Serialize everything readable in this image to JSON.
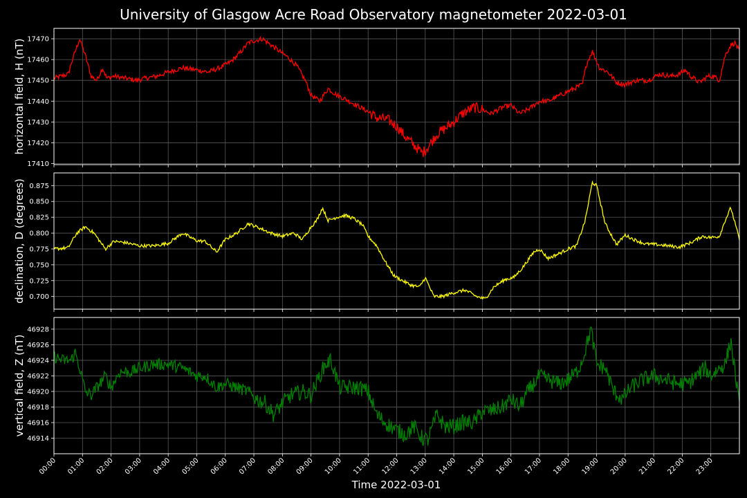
{
  "chart_data": {
    "title": "University of Glasgow Acre Road Observatory magnetometer 2022-03-01",
    "xlabel": "Time 2022-03-01",
    "x_ticks": [
      "00:00",
      "01:00",
      "02:00",
      "03:00",
      "04:00",
      "05:00",
      "06:00",
      "07:00",
      "08:00",
      "09:00",
      "10:00",
      "11:00",
      "12:00",
      "13:00",
      "14:00",
      "15:00",
      "16:00",
      "17:00",
      "18:00",
      "19:00",
      "20:00",
      "21:00",
      "22:00",
      "23:00"
    ],
    "xlim": [
      0,
      24
    ],
    "grid": true,
    "background": "#000000",
    "panels": [
      {
        "type": "line",
        "ylabel": "horizontal field, H (nT)",
        "color": "#ff0000",
        "ylim": [
          17409.5,
          17475
        ],
        "yticks": [
          17410,
          17420,
          17430,
          17440,
          17450,
          17460,
          17470
        ],
        "ytick_labels": [
          "17410",
          "17420",
          "17430",
          "17440",
          "17450",
          "17460",
          "17470"
        ],
        "x": [
          0,
          0.25,
          0.5,
          0.65,
          0.9,
          1.1,
          1.3,
          1.5,
          1.7,
          1.85,
          2.1,
          2.5,
          2.9,
          3.2,
          3.6,
          4.0,
          4.5,
          5.0,
          5.4,
          5.8,
          6.2,
          6.5,
          6.8,
          7.0,
          7.3,
          7.6,
          7.9,
          8.2,
          8.5,
          8.8,
          9.0,
          9.3,
          9.6,
          9.9,
          10.2,
          10.6,
          11.0,
          11.3,
          11.7,
          12.0,
          12.3,
          12.6,
          12.9,
          13.1,
          13.4,
          13.7,
          14.0,
          14.3,
          14.7,
          15.0,
          15.3,
          15.7,
          16.0,
          16.3,
          16.6,
          17.0,
          17.3,
          17.6,
          17.9,
          18.2,
          18.5,
          18.65,
          18.85,
          19.1,
          19.4,
          19.7,
          20.0,
          20.4,
          20.8,
          21.2,
          21.6,
          21.9,
          22.1,
          22.3,
          22.6,
          22.9,
          23.1,
          23.3,
          23.5,
          23.7,
          23.85,
          24.0
        ],
        "values": [
          17451,
          17452,
          17453,
          17460,
          17470,
          17462,
          17452,
          17450,
          17456,
          17451,
          17452,
          17451,
          17450,
          17451,
          17452,
          17454,
          17456,
          17455,
          17454,
          17456,
          17459,
          17463,
          17468,
          17469,
          17470,
          17467,
          17464,
          17461,
          17457,
          17450,
          17443,
          17440,
          17446,
          17443,
          17441,
          17438,
          17435,
          17432,
          17431,
          17428,
          17423,
          17419,
          17415,
          17418,
          17424,
          17427,
          17430,
          17434,
          17437,
          17436,
          17434,
          17437,
          17438,
          17434,
          17436,
          17440,
          17440,
          17442,
          17444,
          17446,
          17448,
          17458,
          17464,
          17456,
          17454,
          17449,
          17448,
          17450,
          17450,
          17453,
          17452,
          17453,
          17455,
          17452,
          17449,
          17452,
          17452,
          17450,
          17462,
          17467,
          17468,
          17464
        ]
      },
      {
        "type": "line",
        "ylabel": "declination, D (degrees)",
        "color": "#ffff00",
        "ylim": [
          0.68,
          0.895
        ],
        "yticks": [
          0.7,
          0.725,
          0.75,
          0.775,
          0.8,
          0.825,
          0.85,
          0.875
        ],
        "ytick_labels": [
          "0.700",
          "0.725",
          "0.750",
          "0.775",
          "0.800",
          "0.825",
          "0.850",
          "0.875"
        ],
        "x": [
          0,
          0.5,
          0.8,
          1.1,
          1.4,
          1.8,
          2.1,
          2.5,
          3.0,
          3.5,
          4.0,
          4.5,
          5.0,
          5.3,
          5.7,
          6.0,
          6.4,
          6.8,
          7.2,
          7.6,
          8.0,
          8.4,
          8.7,
          9.0,
          9.2,
          9.4,
          9.6,
          9.9,
          10.2,
          10.5,
          10.8,
          11.0,
          11.3,
          11.6,
          11.9,
          12.2,
          12.5,
          12.8,
          13.0,
          13.3,
          13.6,
          14.0,
          14.4,
          14.8,
          15.1,
          15.4,
          15.8,
          16.1,
          16.4,
          16.8,
          17.0,
          17.3,
          17.7,
          18.0,
          18.3,
          18.6,
          18.85,
          19.0,
          19.3,
          19.7,
          20.0,
          20.3,
          20.7,
          21.1,
          21.5,
          21.9,
          22.3,
          22.7,
          23.0,
          23.3,
          23.5,
          23.7,
          24.0
        ],
        "values": [
          0.775,
          0.777,
          0.8,
          0.81,
          0.8,
          0.775,
          0.787,
          0.785,
          0.78,
          0.78,
          0.784,
          0.8,
          0.788,
          0.787,
          0.77,
          0.79,
          0.8,
          0.815,
          0.808,
          0.8,
          0.795,
          0.8,
          0.79,
          0.81,
          0.82,
          0.84,
          0.82,
          0.825,
          0.828,
          0.823,
          0.813,
          0.795,
          0.78,
          0.755,
          0.733,
          0.725,
          0.718,
          0.715,
          0.73,
          0.7,
          0.7,
          0.706,
          0.71,
          0.7,
          0.696,
          0.715,
          0.727,
          0.73,
          0.745,
          0.77,
          0.775,
          0.76,
          0.768,
          0.775,
          0.78,
          0.82,
          0.88,
          0.875,
          0.815,
          0.782,
          0.797,
          0.79,
          0.783,
          0.782,
          0.78,
          0.778,
          0.785,
          0.795,
          0.793,
          0.795,
          0.82,
          0.84,
          0.79
        ]
      },
      {
        "type": "line",
        "ylabel": "vertical field, Z (nT)",
        "color": "#008000",
        "ylim": [
          46912,
          46929.5
        ],
        "yticks": [
          46914,
          46916,
          46918,
          46920,
          46922,
          46924,
          46926,
          46928
        ],
        "ytick_labels": [
          "46914",
          "46916",
          "46918",
          "46920",
          "46922",
          "46924",
          "46926",
          "46928"
        ],
        "x": [
          0,
          0.3,
          0.6,
          0.75,
          0.9,
          1.1,
          1.3,
          1.6,
          1.8,
          2.0,
          2.3,
          2.7,
          3.0,
          3.5,
          4.0,
          4.5,
          5.0,
          5.3,
          5.7,
          6.0,
          6.4,
          6.8,
          7.1,
          7.4,
          7.7,
          8.0,
          8.3,
          8.7,
          9.0,
          9.3,
          9.5,
          9.7,
          10.0,
          10.3,
          10.7,
          11.0,
          11.3,
          11.6,
          12.0,
          12.3,
          12.6,
          12.9,
          13.1,
          13.4,
          13.7,
          14.0,
          14.3,
          14.7,
          15.0,
          15.3,
          15.7,
          16.0,
          16.3,
          16.6,
          17.0,
          17.3,
          17.7,
          18.0,
          18.3,
          18.5,
          18.8,
          19.0,
          19.3,
          19.6,
          19.9,
          20.2,
          20.6,
          21.0,
          21.4,
          21.8,
          22.2,
          22.5,
          22.8,
          23.0,
          23.3,
          23.5,
          23.7,
          23.9,
          24.0
        ],
        "values": [
          46924.5,
          46924,
          46924,
          46925,
          46923,
          46920,
          46919.5,
          46921,
          46922,
          46920.5,
          46922.5,
          46922.5,
          46923,
          46923.5,
          46923.5,
          46923,
          46922,
          46922,
          46920.5,
          46921,
          46920.5,
          46920,
          46919,
          46918.5,
          46917,
          46918.5,
          46919.5,
          46920,
          46919.5,
          46922,
          46923.5,
          46924,
          46920.5,
          46920.5,
          46920.5,
          46920,
          46917,
          46916,
          46915,
          46914.5,
          46915.5,
          46914,
          46913.8,
          46917,
          46915.5,
          46915.5,
          46916,
          46916,
          46917.5,
          46917.5,
          46918,
          46919,
          46918,
          46920,
          46922,
          46921.5,
          46921,
          46921.5,
          46922.5,
          46924,
          46928,
          46923.5,
          46923,
          46920,
          46919,
          46920.5,
          46921.5,
          46922,
          46921.5,
          46921,
          46921,
          46922,
          46923,
          46922,
          46923,
          46923.5,
          46926.5,
          46921,
          46918
        ]
      }
    ]
  }
}
